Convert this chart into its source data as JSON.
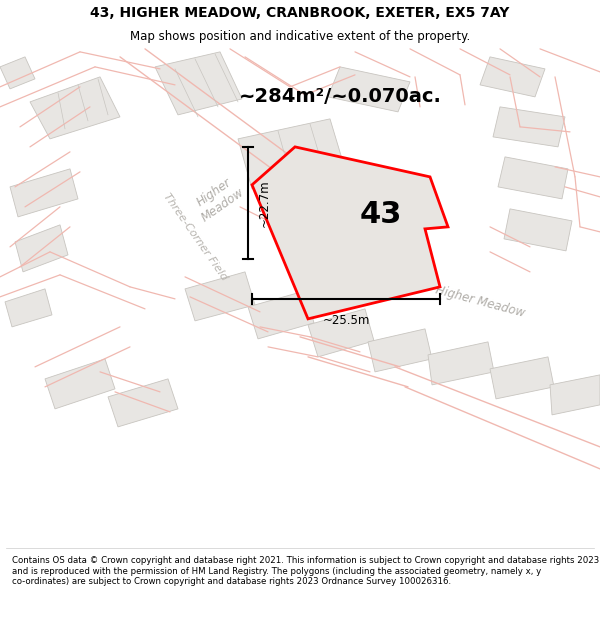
{
  "title_line1": "43, HIGHER MEADOW, CRANBROOK, EXETER, EX5 7AY",
  "title_line2": "Map shows position and indicative extent of the property.",
  "area_text": "~284m²/~0.070ac.",
  "label_43": "43",
  "dim_vertical": "~22.7m",
  "dim_horizontal": "~25.5m",
  "footer_text": "Contains OS data © Crown copyright and database right 2021. This information is subject to Crown copyright and database rights 2023 and is reproduced with the permission of HM Land Registry. The polygons (including the associated geometry, namely x, y co-ordinates) are subject to Crown copyright and database rights 2023 Ordnance Survey 100026316.",
  "bg_color": "#f5f4f2",
  "bldg_fill": "#e8e6e3",
  "bldg_edge": "#c8c5c0",
  "road_line": "#f0b8b0",
  "plot_fill": "#e8e5e1",
  "title_fontsize": 10,
  "subtitle_fontsize": 8.5,
  "area_fontsize": 14,
  "label43_fontsize": 22,
  "footer_fontsize": 6.2
}
